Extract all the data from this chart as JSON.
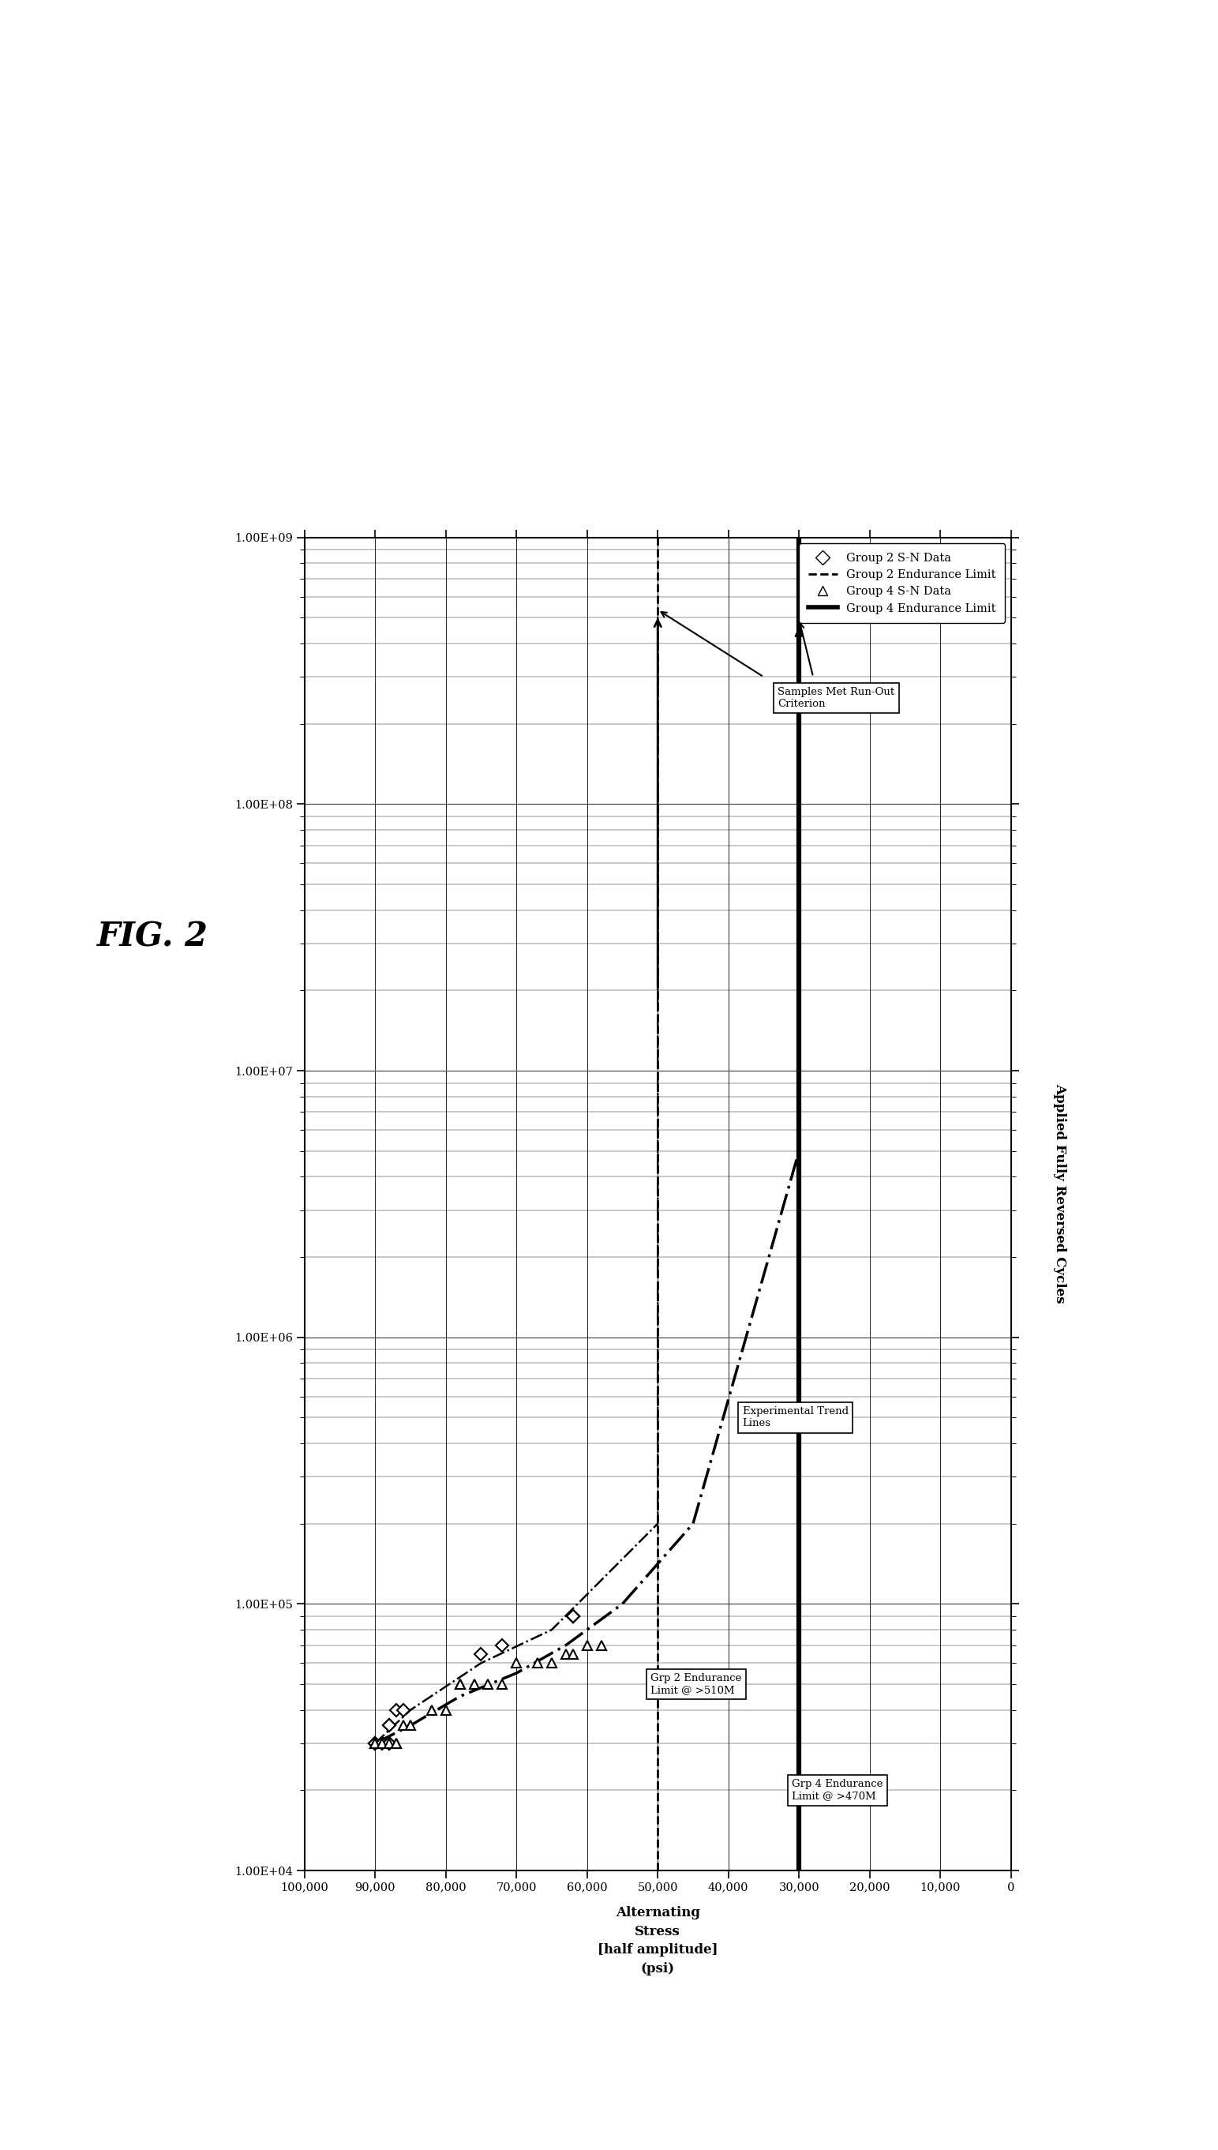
{
  "fig_title": "FIG. 2",
  "xlabel_rotated": "Applied Fully Reversed Cycles",
  "ylabel_stress": "Alternating\nStress\n[half amplitude]\n(psi)",
  "stress_ticks": [
    0,
    10000,
    20000,
    30000,
    40000,
    50000,
    60000,
    70000,
    80000,
    90000,
    100000
  ],
  "stress_tick_labels": [
    "0",
    "10,000",
    "20,000",
    "30,000",
    "40,000",
    "50,000",
    "60,000",
    "70,000",
    "80,000",
    "90,000",
    "100,000"
  ],
  "cycles_ticks": [
    10000.0,
    100000.0,
    1000000.0,
    10000000.0,
    100000000.0,
    1000000000.0
  ],
  "cycles_tick_labels": [
    "1.00E+04",
    "1.00E+05",
    "1.00E+06",
    "1.00E+07",
    "1.00E+08",
    "1.00E+09"
  ],
  "grp2_sn_stress": [
    90000,
    90000,
    90000,
    89000,
    88000,
    88000,
    88000,
    88000,
    87000,
    86000,
    75000,
    72000,
    62000,
    62000,
    62000,
    62000
  ],
  "grp2_sn_cycles": [
    30000.0,
    30000.0,
    30000.0,
    30000.0,
    30000.0,
    30000.0,
    35000.0,
    35000.0,
    40000.0,
    40000.0,
    65000.0,
    70000.0,
    90000.0,
    90000.0,
    90000.0,
    90000.0
  ],
  "grp4_sn_stress": [
    90000,
    90000,
    89000,
    88000,
    87000,
    87000,
    86000,
    85000,
    82000,
    80000,
    78000,
    78000,
    76000,
    74000,
    72000,
    70000,
    67000,
    65000,
    63000,
    62000,
    60000,
    58000
  ],
  "grp4_sn_cycles": [
    30000.0,
    30000.0,
    30000.0,
    30000.0,
    30000.0,
    30000.0,
    35000.0,
    35000.0,
    40000.0,
    40000.0,
    50000.0,
    50000.0,
    50000.0,
    50000.0,
    50000.0,
    60000.0,
    60000.0,
    60000.0,
    65000.0,
    65000.0,
    70000.0,
    70000.0
  ],
  "grp2_trend_stress": [
    90000,
    85000,
    75000,
    65000,
    50000,
    50000
  ],
  "grp2_trend_cycles": [
    30000.0,
    40000.0,
    60000.0,
    80000.0,
    200000.0,
    510000000.0
  ],
  "grp4_trend_stress": [
    90000,
    85000,
    78000,
    70000,
    63000,
    55000,
    45000,
    30000,
    30000
  ],
  "grp4_trend_cycles": [
    30000.0,
    35000.0,
    45000.0,
    55000.0,
    70000.0,
    100000.0,
    200000.0,
    5000000.0,
    470000000.0
  ],
  "grp2_endurance_stress": 50000,
  "grp4_endurance_stress": 30000,
  "grp2_runout_cycles": 510000000.0,
  "grp4_runout_cycles": 470000000.0,
  "legend_entries": [
    "Group 2 S-N Data",
    "Group 2 Endurance Limit",
    "Group 4 S-N Data",
    "Group 4 Endurance Limit"
  ]
}
